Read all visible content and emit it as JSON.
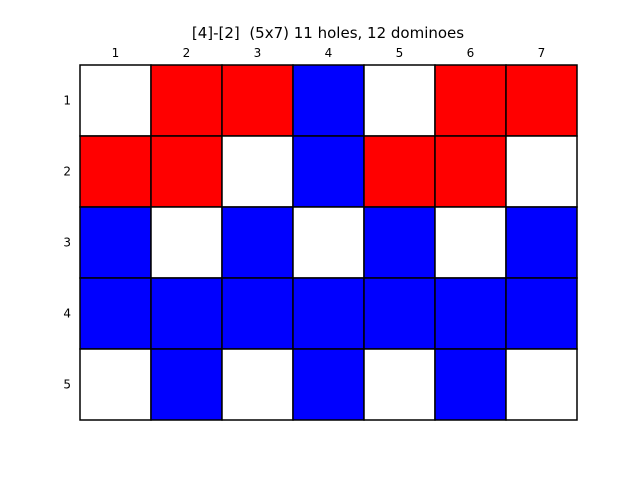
{
  "title": "[4]-[2]  (5x7) 11 holes, 12 dominoes",
  "colors": {
    "hole": "#ffffff",
    "red": "#ff0000",
    "blue": "#0000ff",
    "border": "#000000"
  },
  "column_labels": [
    "1",
    "2",
    "3",
    "4",
    "5",
    "6",
    "7"
  ],
  "row_labels": [
    "1",
    "2",
    "3",
    "4",
    "5"
  ],
  "cells": [
    [
      "hole",
      "red",
      "red",
      "blue",
      "hole",
      "red",
      "red"
    ],
    [
      "red",
      "red",
      "hole",
      "blue",
      "red",
      "red",
      "hole"
    ],
    [
      "blue",
      "hole",
      "blue",
      "hole",
      "blue",
      "hole",
      "blue"
    ],
    [
      "blue",
      "blue",
      "blue",
      "blue",
      "blue",
      "blue",
      "blue"
    ],
    [
      "hole",
      "blue",
      "hole",
      "blue",
      "hole",
      "blue",
      "hole"
    ]
  ]
}
